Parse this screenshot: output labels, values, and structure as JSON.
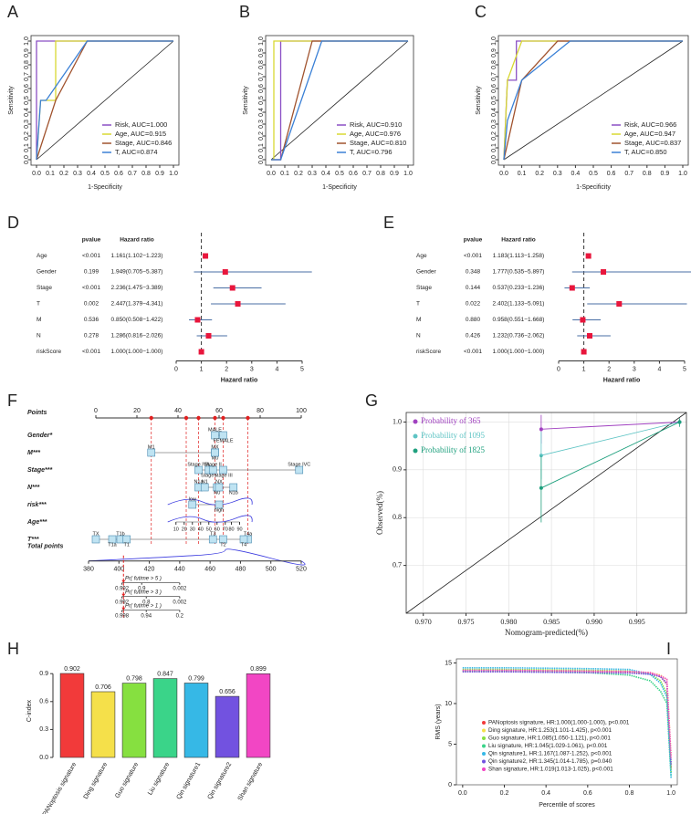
{
  "chart_data": [
    {
      "type": "roc",
      "panel": "A",
      "xlabel": "1-Specificity",
      "ylabel": "Sensitivity",
      "xlim": [
        0,
        1
      ],
      "ylim": [
        0,
        1
      ],
      "xticks": [
        {
          "value": 0,
          "label": "0.0"
        },
        0.1,
        0.2,
        0.3,
        0.4,
        0.5,
        0.6,
        0.7,
        0.8,
        0.9,
        {
          "value": 1,
          "label": "1.0"
        }
      ],
      "yticks": [
        {
          "value": 0,
          "label": "0.0"
        },
        0.1,
        0.2,
        0.3,
        0.4,
        0.5,
        0.6,
        0.7,
        0.8,
        0.9,
        {
          "value": 1,
          "label": "1.0"
        }
      ],
      "series": [
        {
          "name": "Risk, AUC=1.000",
          "color": "#8a4fc4",
          "x": [
            0,
            0,
            1
          ],
          "y": [
            0,
            1,
            1
          ]
        },
        {
          "name": "Age, AUC=0.915",
          "color": "#d8d832",
          "x": [
            0,
            0.03,
            0.14,
            0.14,
            1
          ],
          "y": [
            0,
            0.5,
            0.5,
            1,
            1
          ]
        },
        {
          "name": "Stage, AUC=0.846",
          "color": "#a0522d",
          "x": [
            0,
            0.14,
            0.37,
            1
          ],
          "y": [
            0,
            0.5,
            1,
            1
          ]
        },
        {
          "name": "T, AUC=0.874",
          "color": "#3a80d6",
          "x": [
            0,
            0.03,
            0.07,
            0.37,
            1
          ],
          "y": [
            0,
            0.5,
            0.5,
            1,
            1
          ]
        }
      ]
    },
    {
      "type": "roc",
      "panel": "B",
      "xlabel": "1-Specificity",
      "ylabel": "Sensitivity",
      "xlim": [
        0,
        1
      ],
      "ylim": [
        0,
        1
      ],
      "xticks": [
        {
          "value": 0,
          "label": "0.0"
        },
        0.1,
        0.2,
        0.3,
        0.4,
        0.5,
        0.6,
        0.7,
        0.8,
        0.9,
        {
          "value": 1,
          "label": "1.0"
        }
      ],
      "yticks": [
        {
          "value": 0,
          "label": "0.0"
        },
        0.1,
        0.2,
        0.3,
        0.4,
        0.5,
        0.6,
        0.7,
        0.8,
        0.9,
        {
          "value": 1,
          "label": "1.0"
        }
      ],
      "series": [
        {
          "name": "Risk, AUC=0.910",
          "color": "#8a4fc4",
          "x": [
            0,
            0.07,
            0.07,
            1
          ],
          "y": [
            0,
            0,
            1,
            1
          ]
        },
        {
          "name": "Age, AUC=0.976",
          "color": "#d8d832",
          "x": [
            0,
            0.02,
            0.02,
            1
          ],
          "y": [
            0,
            0,
            1,
            1
          ]
        },
        {
          "name": "Stage, AUC=0.810",
          "color": "#a0522d",
          "x": [
            0,
            0.07,
            0.3,
            1
          ],
          "y": [
            0,
            0,
            1,
            1
          ]
        },
        {
          "name": "T, AUC=0.796",
          "color": "#3a80d6",
          "x": [
            0,
            0.07,
            0.37,
            1
          ],
          "y": [
            0,
            0,
            1,
            1
          ]
        }
      ]
    },
    {
      "type": "roc",
      "panel": "C",
      "xlabel": "1-Specificity",
      "ylabel": "Sensitivity",
      "xlim": [
        0,
        1
      ],
      "ylim": [
        0,
        1
      ],
      "xticks": [
        {
          "value": 0,
          "label": "0.0"
        },
        0.1,
        0.2,
        0.3,
        0.4,
        0.5,
        0.6,
        0.7,
        0.8,
        0.9,
        {
          "value": 1,
          "label": "1.0"
        }
      ],
      "yticks": [
        {
          "value": 0,
          "label": "0.0"
        },
        0.1,
        0.2,
        0.3,
        0.4,
        0.5,
        0.6,
        0.7,
        0.8,
        0.9,
        {
          "value": 1,
          "label": "1.0"
        }
      ],
      "series": [
        {
          "name": "Risk, AUC=0.966",
          "color": "#8a4fc4",
          "x": [
            0,
            0.02,
            0.07,
            0.07,
            1
          ],
          "y": [
            0,
            0.67,
            0.67,
            1,
            1
          ]
        },
        {
          "name": "Age, AUC=0.947",
          "color": "#d8d832",
          "x": [
            0,
            0.02,
            0.1,
            1
          ],
          "y": [
            0,
            0.67,
            1,
            1
          ]
        },
        {
          "name": "Stage, AUC=0.837",
          "color": "#a0522d",
          "x": [
            0,
            0.1,
            0.3,
            1
          ],
          "y": [
            0,
            0.67,
            1,
            1
          ]
        },
        {
          "name": "T, AUC=0.850",
          "color": "#3a80d6",
          "x": [
            0,
            0.02,
            0.1,
            0.37,
            1
          ],
          "y": [
            0,
            0.33,
            0.67,
            1,
            1
          ]
        }
      ]
    },
    {
      "type": "forest",
      "panel": "D",
      "column_headers": [
        "pvalue",
        "Hazard ratio"
      ],
      "xlabel": "Hazard ratio",
      "categories": [
        "Age",
        "Gender",
        "Stage",
        "T",
        "M",
        "N",
        "riskScore"
      ],
      "pvalues": [
        "<0.001",
        "0.199",
        "<0.001",
        "0.002",
        "0.536",
        "0.278",
        "<0.001"
      ],
      "values": [
        1.161,
        1.949,
        2.236,
        2.447,
        0.85,
        1.286,
        1.0
      ],
      "lower": [
        1.102,
        0.705,
        1.475,
        1.379,
        0.508,
        0.816,
        1.0
      ],
      "upper": [
        1.223,
        5.387,
        3.389,
        4.341,
        1.422,
        2.026,
        1.0
      ],
      "value_labels": [
        "1.161(1.102−1.223)",
        "1.949(0.705−5.387)",
        "2.236(1.475−3.389)",
        "2.447(1.379−4.341)",
        "0.850(0.508−1.422)",
        "1.286(0.816−2.026)",
        "1.000(1.000−1.000)"
      ],
      "xlim": [
        0,
        5
      ],
      "xticks": [
        0,
        1,
        2,
        3,
        4,
        5
      ],
      "reference_line": 1,
      "color": "#e8163c",
      "ci_color": "#4a6fa5"
    },
    {
      "type": "forest",
      "panel": "E",
      "column_headers": [
        "pvalue",
        "Hazard ratio"
      ],
      "xlabel": "Hazard ratio",
      "categories": [
        "Age",
        "Gender",
        "Stage",
        "T",
        "M",
        "N",
        "riskScore"
      ],
      "pvalues": [
        "<0.001",
        "0.348",
        "0.144",
        "0.022",
        "0.880",
        "0.426",
        "<0.001"
      ],
      "values": [
        1.183,
        1.777,
        0.537,
        2.402,
        0.958,
        1.232,
        1.0
      ],
      "lower": [
        1.113,
        0.535,
        0.233,
        1.133,
        0.551,
        0.736,
        1.0
      ],
      "upper": [
        1.258,
        5.897,
        1.236,
        5.091,
        1.668,
        2.062,
        1.0
      ],
      "value_labels": [
        "1.183(1.113−1.258)",
        "1.777(0.535−5.897)",
        "0.537(0.233−1.236)",
        "2.402(1.133−5.091)",
        "0.958(0.551−1.668)",
        "1.232(0.736−2.062)",
        "1.000(1.000−1.000)"
      ],
      "xlim": [
        0,
        5
      ],
      "xticks": [
        0,
        1,
        2,
        3,
        4,
        5
      ],
      "reference_line": 1,
      "color": "#e8163c",
      "ci_color": "#4a6fa5"
    },
    {
      "type": "nomogram",
      "panel": "F",
      "points_label": "Points",
      "xlim": [
        0,
        100
      ],
      "xticks": [
        0,
        20,
        40,
        60,
        80,
        100
      ],
      "rows": [
        {
          "label": "Gender*",
          "levels": [
            {
              "label": "MALE",
              "points": 58
            },
            {
              "label": "FEMALE",
              "points": 62
            }
          ]
        },
        {
          "label": "M***",
          "levels": [
            {
              "label": "M1",
              "points": 27
            },
            {
              "label": "M0",
              "points": 58
            },
            {
              "label": "MX",
              "points": 58
            }
          ]
        },
        {
          "label": "Stage***",
          "levels": [
            {
              "label": "Stage IVA",
              "points": 50
            },
            {
              "label": "Stage III",
              "points": 62
            },
            {
              "label": "Stage IVC",
              "points": 99
            },
            {
              "label": "Stage I",
              "points": 55
            },
            {
              "label": "Stage II",
              "points": 57
            }
          ]
        },
        {
          "label": "N***",
          "levels": [
            {
              "label": "N1a",
              "points": 50
            },
            {
              "label": "N0",
              "points": 59
            },
            {
              "label": "N1",
              "points": 53
            },
            {
              "label": "N1b",
              "points": 67
            },
            {
              "label": "NX",
              "points": 60
            }
          ]
        },
        {
          "label": "risk***",
          "levels": [
            {
              "label": "low",
              "points": 47
            },
            {
              "label": "high",
              "points": 60
            }
          ]
        },
        {
          "label": "Age***",
          "levels": [
            {
              "label": "10",
              "points": 39
            },
            {
              "label": "20",
              "points": 43
            },
            {
              "label": "30",
              "points": 47
            },
            {
              "label": "40",
              "points": 51
            },
            {
              "label": "50",
              "points": 55
            },
            {
              "label": "60",
              "points": 59
            },
            {
              "label": "70",
              "points": 63
            },
            {
              "label": "80",
              "points": 66
            },
            {
              "label": "90",
              "points": 70
            }
          ]
        },
        {
          "label": "T***",
          "levels": [
            {
              "label": "TX",
              "points": 0
            },
            {
              "label": "T1a",
              "points": 8
            },
            {
              "label": "T1b",
              "points": 12
            },
            {
              "label": "T1",
              "points": 15
            },
            {
              "label": "T3",
              "points": 57
            },
            {
              "label": "T2",
              "points": 62
            },
            {
              "label": "T4a",
              "points": 74
            },
            {
              "label": "T4",
              "points": 72
            }
          ]
        }
      ],
      "selected_points": [
        27,
        44,
        50,
        58,
        62,
        74
      ],
      "total_label": "Total points",
      "total_lim": [
        380,
        520
      ],
      "total_ticks": [
        380,
        400,
        420,
        440,
        460,
        480,
        500,
        520
      ],
      "total_value": 403,
      "survival": [
        {
          "label": "Pr( futime > 5 )",
          "ticks": [
            0.992,
            0.9,
            0.002
          ],
          "tick_totals": [
            402,
            415,
            440
          ]
        },
        {
          "label": "Pr( futime > 3 )",
          "ticks": [
            0.992,
            0.8,
            0.002
          ],
          "tick_totals": [
            402,
            418,
            440
          ]
        },
        {
          "label": "Pr( futime > 1 )",
          "ticks": [
            0.998,
            0.94,
            0.2
          ],
          "tick_totals": [
            402,
            418,
            440
          ]
        }
      ]
    },
    {
      "type": "calibration",
      "panel": "G",
      "xlabel": "Nomogram-predicted(%)",
      "ylabel": "Observed(%)",
      "xlim": [
        0.968,
        1.0008
      ],
      "ylim": [
        0.6,
        1.02
      ],
      "xticks": [
        {
          "value": 0.97,
          "label": "0.970"
        },
        0.975,
        {
          "value": 0.98,
          "label": "0.980"
        },
        0.985,
        {
          "value": 0.99,
          "label": "0.990"
        },
        0.995
      ],
      "yticks": [
        0.7,
        0.8,
        0.9,
        {
          "value": 1,
          "label": "1.0"
        }
      ],
      "legend": "top-left",
      "series": [
        {
          "name": "Probability of 365",
          "color": "#a040c0",
          "x": [
            0.9838,
            1.0
          ],
          "y": [
            0.985,
            1.0
          ],
          "lower": [
            0.955,
            0.998
          ],
          "upper": [
            1.015,
            1.002
          ]
        },
        {
          "name": "Probability of 1095",
          "color": "#5ec4c4",
          "x": [
            0.9838,
            1.0
          ],
          "y": [
            0.93,
            1.0
          ],
          "lower": [
            0.88,
            0.995
          ],
          "upper": [
            0.98,
            1.005
          ]
        },
        {
          "name": "Probability of 1825",
          "color": "#1fa07e",
          "x": [
            0.9838,
            1.0
          ],
          "y": [
            0.862,
            1.0
          ],
          "lower": [
            0.79,
            0.99
          ],
          "upper": [
            0.93,
            1.008
          ]
        }
      ]
    },
    {
      "type": "bar",
      "panel": "H",
      "ylabel": "C-index",
      "categories": [
        "PANoptosis signature",
        "Ding signature",
        "Guo signature",
        "Liu signature",
        "Qin signature1",
        "Qin signature2",
        "Shan signature"
      ],
      "values": [
        0.902,
        0.706,
        0.798,
        0.847,
        0.799,
        0.656,
        0.899
      ],
      "colors": [
        "#f23a3a",
        "#f5e04a",
        "#86e040",
        "#3ad489",
        "#36b8e6",
        "#7252e0",
        "#f246c4"
      ],
      "ylim": [
        0,
        1
      ],
      "yticks": [
        {
          "value": 0,
          "label": "0.0"
        },
        0.3,
        0.6,
        0.9
      ]
    },
    {
      "type": "line",
      "panel": "I",
      "xlabel": "Percentile of scores",
      "ylabel": "RMS (years)",
      "x": [
        0,
        0.2,
        0.4,
        0.6,
        0.8,
        0.9,
        0.95,
        0.98,
        1.0
      ],
      "xlim": [
        -0.03,
        1.03
      ],
      "ylim": [
        0,
        15.5
      ],
      "xticks": [
        {
          "value": 0,
          "label": "0.0"
        },
        0.2,
        0.4,
        0.6,
        0.8,
        {
          "value": 1,
          "label": "1.0"
        }
      ],
      "yticks": [
        0,
        5,
        10,
        15
      ],
      "legend": "bottom-right",
      "series": [
        {
          "name": "PANoptosis signature, HR:1.000(1.000-1.000), p<0.001",
          "color": "#f23a3a",
          "values": [
            14.0,
            14.0,
            13.95,
            13.9,
            13.85,
            13.7,
            13.3,
            12.4,
            2.0
          ]
        },
        {
          "name": "Ding signature, HR:1.253(1.101-1.425), p<0.001",
          "color": "#f5e04a",
          "values": [
            14.1,
            14.1,
            14.05,
            14.0,
            13.95,
            13.8,
            13.5,
            12.9,
            3.5
          ]
        },
        {
          "name": "Guo signature, HR:1.085(1.050-1.121), p<0.001",
          "color": "#86e040",
          "values": [
            14.2,
            14.2,
            14.15,
            14.1,
            14.0,
            13.6,
            12.8,
            11.2,
            1.5
          ]
        },
        {
          "name": "Liu signature, HR:1.045(1.029-1.061), p<0.001",
          "color": "#3ad489",
          "values": [
            14.0,
            14.0,
            13.9,
            13.8,
            13.5,
            12.8,
            11.5,
            10.0,
            1.0
          ]
        },
        {
          "name": "Qin signature1, HR:1.167(1.087-1.252), p<0.001",
          "color": "#36b8e6",
          "values": [
            14.4,
            14.4,
            14.35,
            14.3,
            14.2,
            13.6,
            12.5,
            10.8,
            0.8
          ]
        },
        {
          "name": "Qin signature2, HR:1.345(1.014-1.785), p=0.040",
          "color": "#7252e0",
          "values": [
            13.9,
            13.9,
            13.85,
            13.8,
            13.75,
            13.6,
            13.3,
            12.5,
            2.5
          ]
        },
        {
          "name": "Shan signature, HR:1.019(1.013-1.025), p<0.001",
          "color": "#f246c4",
          "values": [
            14.1,
            14.1,
            14.05,
            14.0,
            13.95,
            13.8,
            13.4,
            13.0,
            3.2
          ]
        }
      ]
    }
  ]
}
